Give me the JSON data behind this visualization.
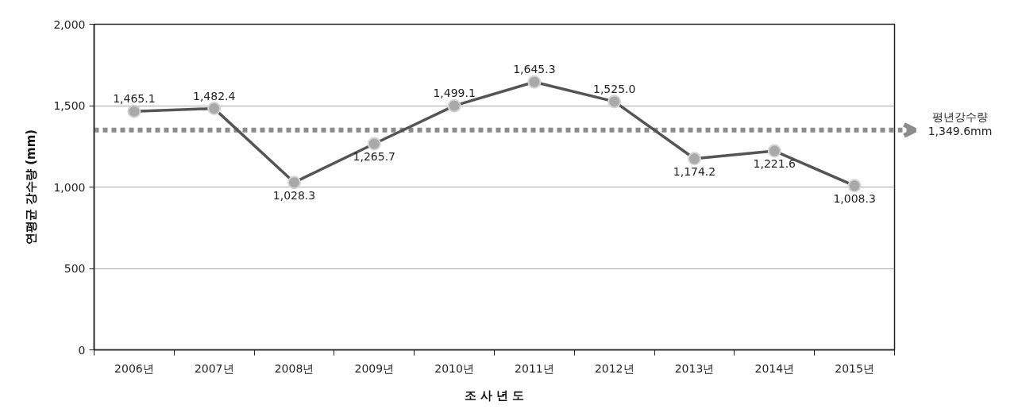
{
  "chart_data": {
    "type": "line",
    "xlabel": "조 사 년 도",
    "ylabel": "연평균 강수량 (mm)",
    "categories": [
      "2006년",
      "2007년",
      "2008년",
      "2009년",
      "2010년",
      "2011년",
      "2012년",
      "2013년",
      "2014년",
      "2015년"
    ],
    "values": [
      1465.1,
      1482.4,
      1028.3,
      1265.7,
      1499.1,
      1645.3,
      1525.0,
      1174.2,
      1221.6,
      1008.3
    ],
    "value_labels": [
      "1,465.1",
      "1,482.4",
      "1,028.3",
      "1,265.7",
      "1,499.1",
      "1,645.3",
      "1,525.0",
      "1,174.2",
      "1,221.6",
      "1,008.3"
    ],
    "color": "#555555",
    "marker": "circle",
    "line_style": "solid",
    "ylim": [
      0,
      2000
    ],
    "yticks": [
      0,
      500,
      {
        "value": 1000,
        "label": "1,000"
      },
      {
        "value": 1500,
        "label": "1,500"
      },
      {
        "value": 2000,
        "label": "2,000"
      }
    ],
    "grid": "y",
    "ref_lines": [
      {
        "axis": "y",
        "value": 1349.6,
        "label": "평년강수량\n1,349.6mm",
        "color": "#8c8c8c",
        "line_style": "dotted"
      }
    ]
  }
}
